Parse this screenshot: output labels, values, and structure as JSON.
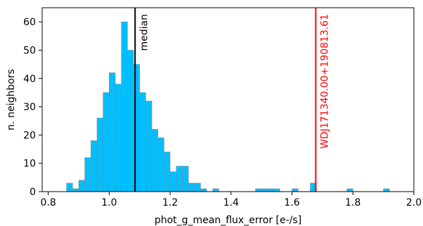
{
  "chart_data": {
    "type": "bar",
    "title": "",
    "xlabel": "phot_g_mean_flux_error [e-/s]",
    "ylabel": "n. neighbors",
    "xlim": [
      0.78,
      2.0
    ],
    "ylim": [
      0,
      65
    ],
    "xticks": [
      "0.8",
      "1.0",
      "1.2",
      "1.4",
      "1.6",
      "1.8",
      "2.0"
    ],
    "yticks": [
      "0",
      "10",
      "20",
      "30",
      "40",
      "50",
      "60"
    ],
    "grid": false,
    "bar_color": "#00bfff",
    "bar_edge_color": "#888888",
    "bin_width": 0.0199,
    "bins": [
      {
        "x": 0.87,
        "count": 3
      },
      {
        "x": 0.89,
        "count": 1
      },
      {
        "x": 0.91,
        "count": 4
      },
      {
        "x": 0.93,
        "count": 12
      },
      {
        "x": 0.95,
        "count": 18
      },
      {
        "x": 0.97,
        "count": 26
      },
      {
        "x": 0.99,
        "count": 35
      },
      {
        "x": 1.01,
        "count": 42
      },
      {
        "x": 1.03,
        "count": 38
      },
      {
        "x": 1.05,
        "count": 60
      },
      {
        "x": 1.07,
        "count": 50
      },
      {
        "x": 1.09,
        "count": 45
      },
      {
        "x": 1.11,
        "count": 35
      },
      {
        "x": 1.13,
        "count": 32
      },
      {
        "x": 1.15,
        "count": 22
      },
      {
        "x": 1.17,
        "count": 19
      },
      {
        "x": 1.19,
        "count": 14
      },
      {
        "x": 1.21,
        "count": 7
      },
      {
        "x": 1.23,
        "count": 9
      },
      {
        "x": 1.25,
        "count": 9
      },
      {
        "x": 1.27,
        "count": 3
      },
      {
        "x": 1.29,
        "count": 3
      },
      {
        "x": 1.31,
        "count": 1
      },
      {
        "x": 1.35,
        "count": 1
      },
      {
        "x": 1.49,
        "count": 1
      },
      {
        "x": 1.51,
        "count": 1
      },
      {
        "x": 1.53,
        "count": 1
      },
      {
        "x": 1.55,
        "count": 1
      },
      {
        "x": 1.61,
        "count": 1
      },
      {
        "x": 1.67,
        "count": 3
      },
      {
        "x": 1.79,
        "count": 1
      },
      {
        "x": 1.91,
        "count": 1
      }
    ],
    "annotations": [
      {
        "label": "median",
        "x": 1.085,
        "color": "#000000"
      },
      {
        "label": "WDJ171340.00+190813.61",
        "x": 1.678,
        "color": "#ff0000"
      }
    ]
  }
}
